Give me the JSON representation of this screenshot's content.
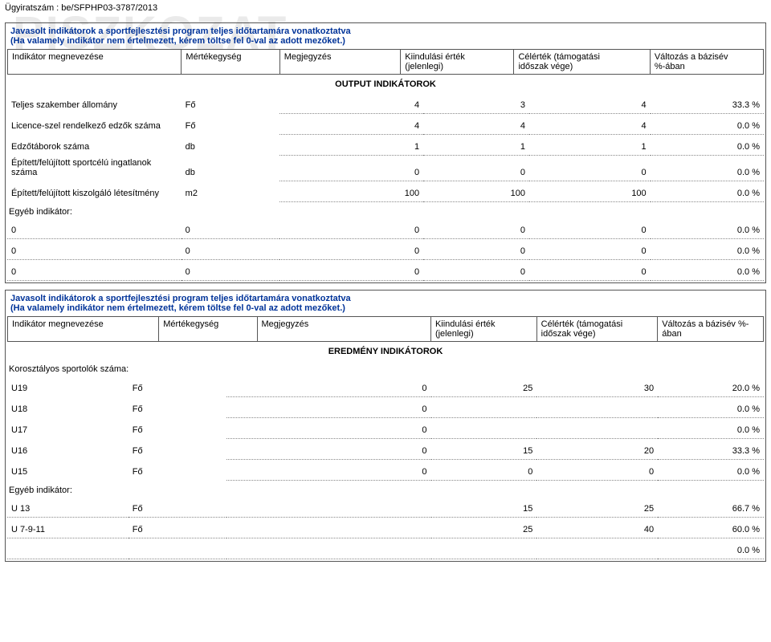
{
  "watermark": "PISZKOZAT",
  "docId": "Ügyiratszám : be/SFPHP03-3787/2013",
  "section1": {
    "title": "Javasolt indikátorok a sportfejlesztési program teljes időtartamára vonatkoztatva",
    "sub": "(Ha valamely indikátor nem értelmezett, kérem töltse fel 0-val az adott mezőket.)",
    "headers": {
      "c1": "Indikátor megnevezése",
      "c2": "Mértékegység",
      "c3": "Megjegyzés",
      "c4a": "Kiindulási érték",
      "c4b": "(jelenlegi)",
      "c5a": "Célérték (támogatási",
      "c5b": "időszak vége)",
      "c6a": "Változás a bázisév",
      "c6b": "%-ában"
    },
    "band": "OUTPUT INDIKÁTOROK",
    "rows": [
      {
        "name": "Teljes szakember állomány",
        "unit": "Fő",
        "v1": "4",
        "v2": "3",
        "v3": "4",
        "pct": "33.3 %"
      },
      {
        "name": "Licence-szel rendelkező edzők száma",
        "unit": "Fő",
        "v1": "4",
        "v2": "4",
        "v3": "4",
        "pct": "0.0 %"
      },
      {
        "name": "Edzőtáborok száma",
        "unit": "db",
        "v1": "1",
        "v2": "1",
        "v3": "1",
        "pct": "0.0 %"
      },
      {
        "name": "Épített/felújított sportcélú ingatlanok száma",
        "unit": "db",
        "v1": "0",
        "v2": "0",
        "v3": "0",
        "pct": "0.0 %"
      },
      {
        "name": "Épített/felújított kiszolgáló létesítmény",
        "unit": "m2",
        "v1": "100",
        "v2": "100",
        "v3": "100",
        "pct": "0.0 %"
      }
    ],
    "otherLabel": "Egyéb indikátor:",
    "otherRows": [
      {
        "name": "0",
        "unit": "0",
        "v1": "0",
        "v2": "0",
        "v3": "0",
        "pct": "0.0 %"
      },
      {
        "name": "0",
        "unit": "0",
        "v1": "0",
        "v2": "0",
        "v3": "0",
        "pct": "0.0 %"
      },
      {
        "name": "0",
        "unit": "0",
        "v1": "0",
        "v2": "0",
        "v3": "0",
        "pct": "0.0 %"
      }
    ]
  },
  "section2": {
    "title": "Javasolt indikátorok a sportfejlesztési program teljes időtartamára vonatkoztatva",
    "sub": "(Ha valamely indikátor nem értelmezett, kérem töltse fel 0-val az adott mezőket.)",
    "headers": {
      "c1": "Indikátor megnevezése",
      "c2": "Mértékegység",
      "c3": "Megjegyzés",
      "c4a": "Kiindulási érték",
      "c4b": "(jelenlegi)",
      "c5a": "Célérték (támogatási",
      "c5b": "időszak vége)",
      "c6a": "Változás a bázisév %-",
      "c6b": "ában"
    },
    "band": "EREDMÉNY INDIKÁTOROK",
    "groupLabel": "Korosztályos sportolók száma:",
    "rows": [
      {
        "name": "U19",
        "unit": "Fő",
        "v1": "0",
        "v2": "25",
        "v3": "30",
        "pct": "20.0 %"
      },
      {
        "name": "U18",
        "unit": "Fő",
        "v1": "0",
        "v2": "",
        "v3": "",
        "pct": "0.0 %"
      },
      {
        "name": "U17",
        "unit": "Fő",
        "v1": "0",
        "v2": "",
        "v3": "",
        "pct": "0.0 %"
      },
      {
        "name": "U16",
        "unit": "Fő",
        "v1": "0",
        "v2": "15",
        "v3": "20",
        "pct": "33.3 %"
      },
      {
        "name": "U15",
        "unit": "Fő",
        "v1": "0",
        "v2": "0",
        "v3": "0",
        "pct": "0.0 %"
      }
    ],
    "otherLabel": "Egyéb indikátor:",
    "otherRows": [
      {
        "name": "U 13",
        "unit": "Fő",
        "v1": "",
        "v2": "15",
        "v3": "25",
        "pct": "66.7 %"
      },
      {
        "name": "U 7-9-11",
        "unit": "Fő",
        "v1": "",
        "v2": "25",
        "v3": "40",
        "pct": "60.0 %"
      },
      {
        "name": "",
        "unit": "",
        "v1": "",
        "v2": "",
        "v3": "",
        "pct": "0.0 %"
      }
    ]
  }
}
